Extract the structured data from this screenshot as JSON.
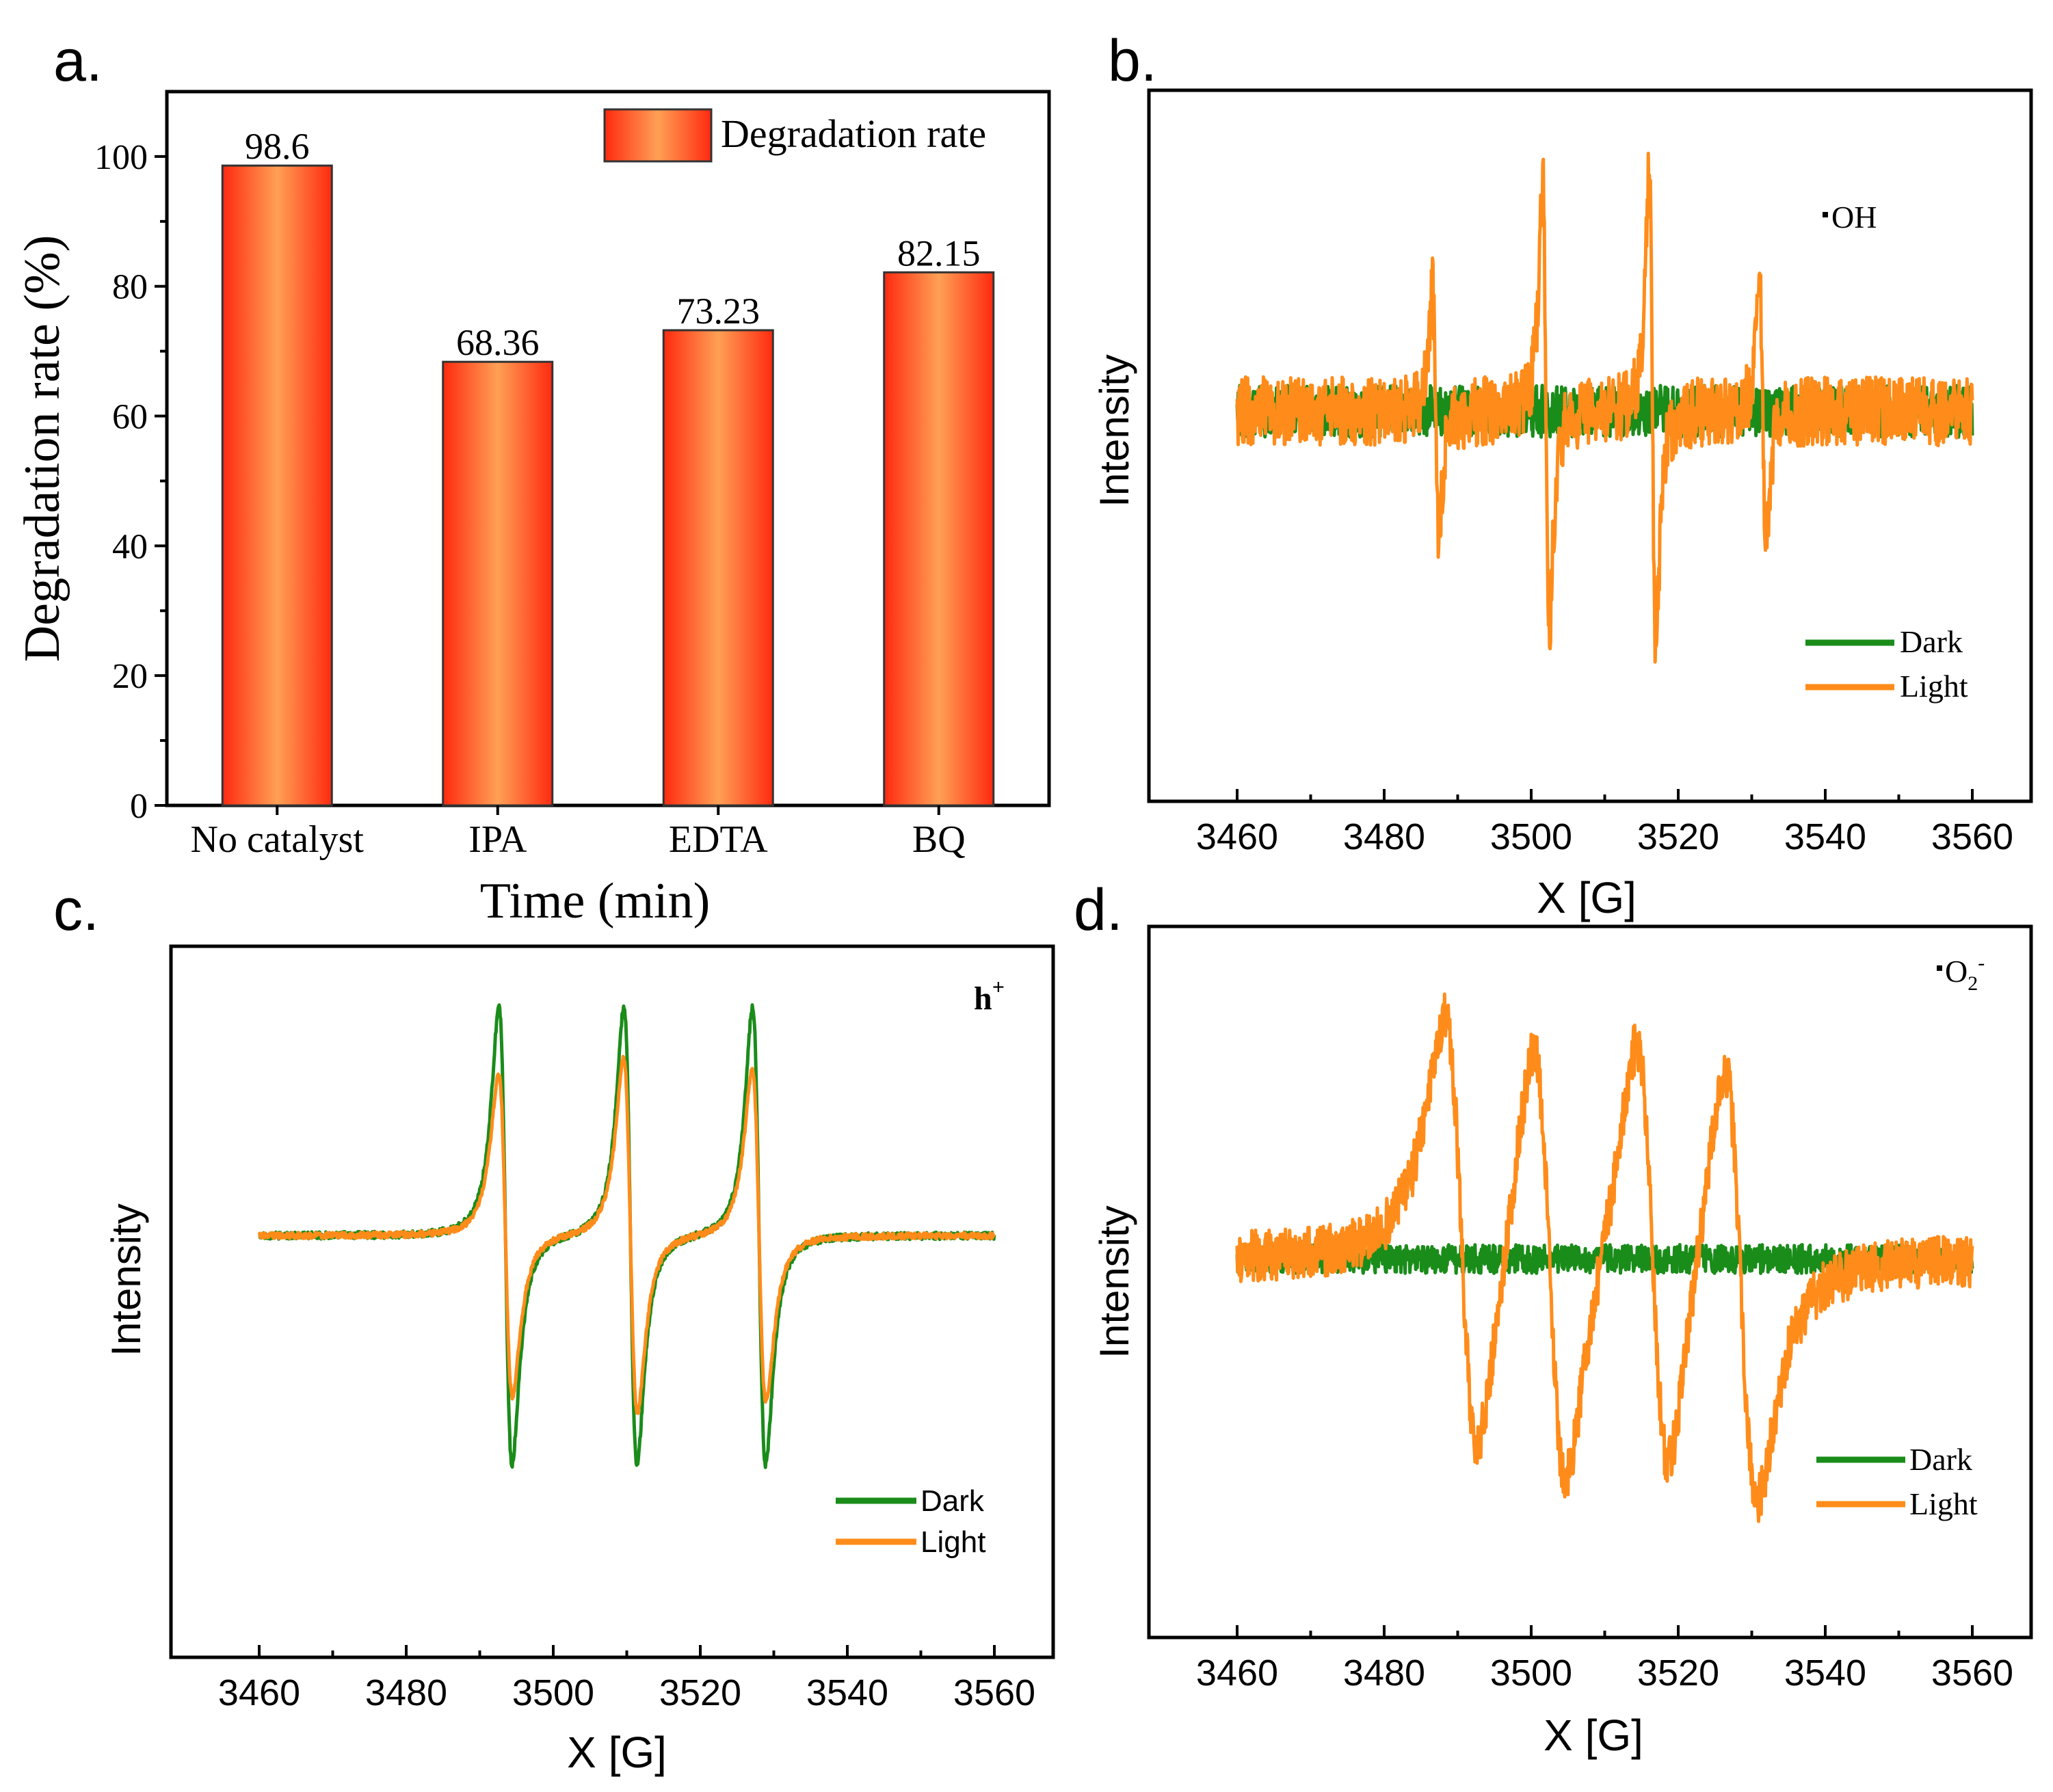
{
  "colors": {
    "dark": "#1a8c1a",
    "light": "#ff8c1a",
    "bar_edge": "#ff2a10",
    "bar_center": "#ffa055"
  },
  "chart_data": [
    {
      "id": "a",
      "panel_label": "a.",
      "type": "bar",
      "title": "",
      "categories": [
        "No catalyst",
        "IPA",
        "EDTA",
        "BQ"
      ],
      "values": [
        98.6,
        68.36,
        73.23,
        82.15
      ],
      "value_labels": [
        "98.6",
        "68.36",
        "73.23",
        "82.15"
      ],
      "series": [
        {
          "name": "Degradation rate",
          "values": [
            98.6,
            68.36,
            73.23,
            82.15
          ]
        }
      ],
      "xlabel": "Time (min)",
      "ylabel": "Degradation rate (%)",
      "ylim": [
        0,
        110
      ],
      "yticks": [
        0,
        20,
        40,
        60,
        80,
        100
      ],
      "legend": "Degradation rate",
      "legend_position": "top-right"
    },
    {
      "id": "b",
      "panel_label": "b.",
      "type": "line",
      "annotation": "OH",
      "xlabel": "X [G]",
      "ylabel": "Intensity",
      "xlim": [
        3448,
        3568
      ],
      "ylim": [
        -1.1,
        1.1
      ],
      "xticks": [
        3460,
        3480,
        3500,
        3520,
        3540,
        3560
      ],
      "series": [
        {
          "name": "Dark",
          "noise": 0.09,
          "peaks": []
        },
        {
          "name": "Light",
          "noise": 0.12,
          "peak_width": 0.45,
          "peaks": [
            {
              "x": 3487,
              "amp": 0.48
            },
            {
              "x": 3502,
              "amp": 0.92
            },
            {
              "x": 3516.5,
              "amp": 0.96
            },
            {
              "x": 3531.5,
              "amp": 0.48
            }
          ]
        }
      ],
      "legend_position": "bottom-right"
    },
    {
      "id": "c",
      "panel_label": "c.",
      "type": "line",
      "annotation": "h",
      "annotation_sup": "+",
      "xlabel": "X [G]",
      "ylabel": "Intensity",
      "xlim": [
        3448,
        3568
      ],
      "ylim": [
        -1.1,
        1.1
      ],
      "xticks": [
        3460,
        3480,
        3500,
        3520,
        3540,
        3560
      ],
      "series": [
        {
          "name": "Dark",
          "noise": 0.012,
          "peak_width": 0.9,
          "peaks": [
            {
              "x": 3493.5,
              "amp": 0.88
            },
            {
              "x": 3510.5,
              "amp": 0.88
            },
            {
              "x": 3528,
              "amp": 0.88
            }
          ]
        },
        {
          "name": "Light",
          "noise": 0.01,
          "peak_width": 0.95,
          "peaks": [
            {
              "x": 3493.5,
              "amp": 0.62
            },
            {
              "x": 3510.5,
              "amp": 0.68
            },
            {
              "x": 3528,
              "amp": 0.64
            }
          ]
        }
      ],
      "legend_position": "bottom-right"
    },
    {
      "id": "d",
      "panel_label": "d.",
      "type": "line",
      "annotation": "O",
      "annotation_sub": "2",
      "annotation_sup": "-",
      "xlabel": "X [G]",
      "ylabel": "Intensity",
      "xlim": [
        3448,
        3568
      ],
      "ylim": [
        -1.1,
        1.1
      ],
      "xticks": [
        3460,
        3480,
        3500,
        3520,
        3540,
        3560
      ],
      "series": [
        {
          "name": "Dark",
          "noise": 0.05,
          "peaks": []
        },
        {
          "name": "Light",
          "noise": 0.09,
          "peak_width": 2.3,
          "peaks": [
            {
              "x": 3490.5,
              "amp": 0.9
            },
            {
              "x": 3502.5,
              "amp": 0.92
            },
            {
              "x": 3516.5,
              "amp": 0.9
            },
            {
              "x": 3528.5,
              "amp": 0.9
            }
          ]
        }
      ],
      "legend_position": "bottom-right"
    }
  ]
}
